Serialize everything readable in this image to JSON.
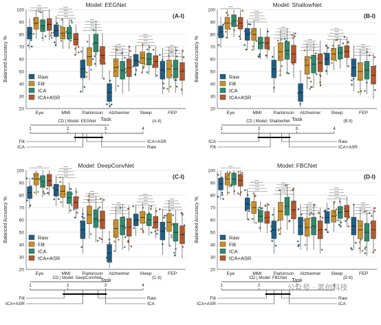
{
  "colors": {
    "raw": "#1f5f86",
    "filt": "#c9902a",
    "ica": "#2f8b6c",
    "icaasr": "#b5582b",
    "grid": "#d0d0d0",
    "text": "#222222"
  },
  "legend_entries": [
    "Raw",
    "Filt",
    "ICA",
    "ICA+ASR"
  ],
  "watermark": "公众号 · 茗创科技",
  "chart_data": [
    {
      "type": "box",
      "panel_label": "(A-I)",
      "title": "Model: EEGNet",
      "xlabel": "Task",
      "ylabel": "Balanced Accuracy %",
      "ylim": [
        20,
        100
      ],
      "yticks": [
        20,
        30,
        40,
        50,
        60,
        70,
        80,
        90,
        100
      ],
      "grid": true,
      "legend": "bottom-left",
      "categories": [
        "Eye",
        "MMI",
        "Parkinson",
        "Alzheimer",
        "Sleep",
        "FEP"
      ],
      "series": [
        {
          "name": "Raw",
          "values": [
            81,
            83,
            52,
            33,
            59,
            51
          ]
        },
        {
          "name": "Filt",
          "values": [
            89,
            81,
            62,
            53,
            61,
            52
          ]
        },
        {
          "name": "ICA",
          "values": [
            87,
            81,
            73,
            51,
            60,
            52
          ]
        },
        {
          "name": "ICA+ASR",
          "values": [
            88,
            76,
            63,
            53,
            58,
            50
          ]
        }
      ]
    },
    {
      "type": "box",
      "panel_label": "(B-I)",
      "title": "Model: ShallowNet",
      "xlabel": "Task",
      "ylabel": "Balanced Accuracy %",
      "ylim": [
        20,
        100
      ],
      "yticks": [
        20,
        30,
        40,
        50,
        60,
        70,
        80,
        90,
        100
      ],
      "grid": true,
      "legend": "bottom-left",
      "categories": [
        "Eye",
        "MMI",
        "Parkinson",
        "Alzheimer",
        "Sleep",
        "FEP"
      ],
      "series": [
        {
          "name": "Raw",
          "values": [
            82,
            80,
            52,
            33,
            60,
            53
          ]
        },
        {
          "name": "Filt",
          "values": [
            89,
            80,
            66,
            55,
            64,
            50
          ]
        },
        {
          "name": "ICA",
          "values": [
            91,
            73,
            67,
            56,
            65,
            51
          ]
        },
        {
          "name": "ICA+ASR",
          "values": [
            89,
            73,
            64,
            57,
            66,
            47
          ]
        }
      ]
    },
    {
      "type": "box",
      "panel_label": "(C-I)",
      "title": "Model: DeepConvNet",
      "xlabel": "Task",
      "ylabel": "Balanced Accuracy %",
      "ylim": [
        20,
        100
      ],
      "yticks": [
        20,
        30,
        40,
        50,
        60,
        70,
        80,
        90,
        100
      ],
      "grid": true,
      "legend": "bottom-left",
      "categories": [
        "Eye",
        "MMI",
        "Parkinson",
        "Alzheimer",
        "Sleep",
        "FEP"
      ],
      "series": [
        {
          "name": "Raw",
          "values": [
            82,
            84,
            52,
            33,
            60,
            51
          ]
        },
        {
          "name": "Filt",
          "values": [
            93,
            83,
            64,
            53,
            62,
            58
          ]
        },
        {
          "name": "ICA",
          "values": [
            91,
            78,
            61,
            55,
            60,
            50
          ]
        },
        {
          "name": "ICA+ASR",
          "values": [
            92,
            74,
            60,
            54,
            58,
            48
          ]
        }
      ]
    },
    {
      "type": "box",
      "panel_label": "(D-I)",
      "title": "Model: FBCNet",
      "xlabel": "Task",
      "ylabel": "Balanced Accuracy %",
      "ylim": [
        20,
        100
      ],
      "yticks": [
        20,
        30,
        40,
        50,
        60,
        70,
        80,
        90,
        100
      ],
      "grid": true,
      "legend": "bottom-left",
      "categories": [
        "Eye",
        "MMI",
        "Parkinson",
        "Alzheimer",
        "Sleep",
        "FEP"
      ],
      "series": [
        {
          "name": "Raw",
          "values": [
            89,
            73,
            52,
            55,
            62,
            55
          ]
        },
        {
          "name": "Filt",
          "values": [
            93,
            70,
            67,
            54,
            63,
            52
          ]
        },
        {
          "name": "ICA",
          "values": [
            93,
            63,
            71,
            55,
            66,
            50
          ]
        },
        {
          "name": "ICA+ASR",
          "values": [
            92,
            62,
            68,
            52,
            67,
            52
          ]
        }
      ]
    }
  ],
  "cd_diagrams": [
    {
      "panel_label": "(A-II)",
      "title": "CD | Model: EEGNet",
      "axis": [
        1,
        2,
        3,
        4
      ],
      "left": [
        {
          "name": "Filt",
          "rank": 2.2
        },
        {
          "name": "ICA",
          "rank": 2.4
        }
      ],
      "right": [
        {
          "name": "ICA+ASR",
          "rank": 2.5
        },
        {
          "name": "Raw",
          "rank": 2.9
        }
      ]
    },
    {
      "panel_label": "(B-II)",
      "title": "CD | Model: ShallowNet",
      "axis": [
        1,
        2,
        3,
        4
      ],
      "left": [
        {
          "name": "ICA",
          "rank": 2.0
        },
        {
          "name": "Filt",
          "rank": 2.3
        }
      ],
      "right": [
        {
          "name": "Raw",
          "rank": 2.6
        },
        {
          "name": "ICA+ASR",
          "rank": 2.8
        }
      ]
    },
    {
      "panel_label": "(C-II)",
      "title": "CD | Model: DeepConvNet",
      "axis": [
        1,
        2,
        3,
        4
      ],
      "left": [
        {
          "name": "Filt",
          "rank": 1.9
        },
        {
          "name": "ICA+ASR",
          "rank": 2.4
        }
      ],
      "right": [
        {
          "name": "Raw",
          "rank": 2.8
        },
        {
          "name": "ICA",
          "rank": 3.0
        }
      ]
    },
    {
      "panel_label": "(D-II)",
      "title": "CD | Model: FBCNet",
      "axis": [
        1,
        2,
        3,
        4
      ],
      "left": [
        {
          "name": "Filt",
          "rank": 2.2
        },
        {
          "name": "ICA+ASR",
          "rank": 2.4
        }
      ],
      "right": [
        {
          "name": "Raw",
          "rank": 2.6
        },
        {
          "name": "ICA",
          "rank": 2.8
        }
      ]
    }
  ]
}
